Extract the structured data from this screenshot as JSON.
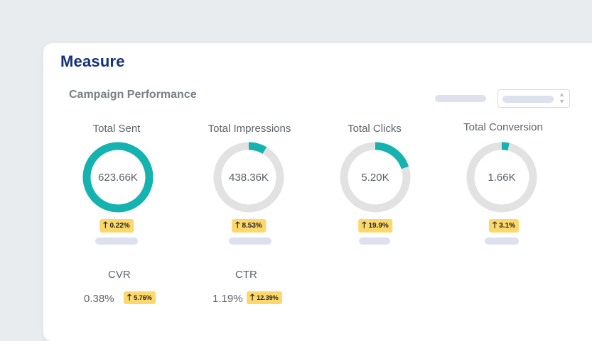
{
  "page": {
    "title": "Measure",
    "subtitle": "Campaign Performance"
  },
  "colors": {
    "accent": "#14b3b0",
    "track": "#e2e2e2",
    "badge": "#fcd86b",
    "title": "#15307a"
  },
  "metrics": [
    {
      "label": "Total Sent",
      "value": "623.66K",
      "change": "0.22%",
      "fill_fraction": 1.0
    },
    {
      "label": "Total Impressions",
      "value": "438.36K",
      "change": "8.53%",
      "fill_fraction": 0.085
    },
    {
      "label": "Total Clicks",
      "value": "5.20K",
      "change": "19.9%",
      "fill_fraction": 0.2
    },
    {
      "label": "Total Conversion",
      "value": "1.66K",
      "change": "3.1%",
      "fill_fraction": 0.035
    }
  ],
  "rates": [
    {
      "label": "CVR",
      "value": "0.38%",
      "change": "5.76%"
    },
    {
      "label": "CTR",
      "value": "1.19%",
      "change": "12.39%"
    }
  ],
  "icons": {
    "up": "arrow-up-icon",
    "select": "chevron-updown-icon"
  }
}
